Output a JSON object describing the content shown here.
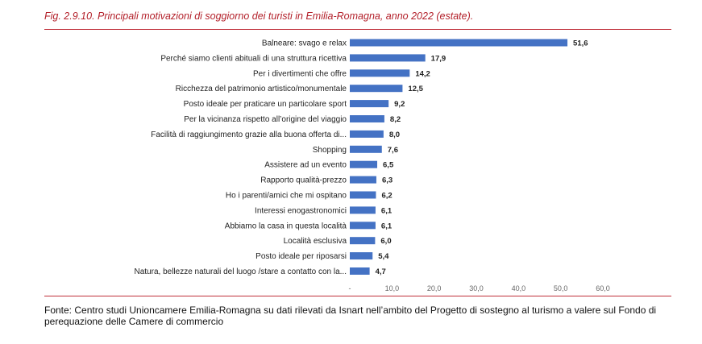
{
  "figure": {
    "title": "Fig. 2.9.10.  Principali motivazioni di soggiorno dei turisti in Emilia-Romagna, anno 2022 (estate).",
    "source": "Fonte: Centro studi Unioncamere Emilia-Romagna su dati rilevati da Isnart nell’ambito del Progetto di sostegno al turismo a valere sul Fondo di perequazione delle Camere di commercio"
  },
  "chart_data": {
    "type": "bar",
    "orientation": "horizontal",
    "categories": [
      "Balneare: svago e relax",
      "Perché siamo clienti abituali di una struttura ricettiva",
      "Per i divertimenti che offre",
      "Ricchezza del patrimonio artistico/monumentale",
      "Posto ideale per praticare un particolare sport",
      "Per la vicinanza rispetto all’origine del viaggio",
      "Facilità di raggiungimento grazie alla buona offerta di...",
      "Shopping",
      "Assistere ad un evento",
      "Rapporto qualità-prezzo",
      "Ho i parenti/amici che mi ospitano",
      "Interessi enogastronomici",
      "Abbiamo la casa in questa località",
      "Località esclusiva",
      "Posto ideale per riposarsi",
      "Natura, bellezze naturali del luogo /stare a contatto con la..."
    ],
    "values": [
      51.6,
      17.9,
      14.2,
      12.5,
      9.2,
      8.2,
      8.0,
      7.6,
      6.5,
      6.3,
      6.2,
      6.1,
      6.1,
      6.0,
      5.4,
      4.7
    ],
    "value_labels": [
      "51,6",
      "17,9",
      "14,2",
      "12,5",
      "9,2",
      "8,2",
      "8,0",
      "7,6",
      "6,5",
      "6,3",
      "6,2",
      "6,1",
      "6,1",
      "6,0",
      "5,4",
      "4,7"
    ],
    "xlim": [
      0,
      60
    ],
    "x_ticks": [
      0,
      10,
      20,
      30,
      40,
      50,
      60
    ],
    "x_tick_labels": [
      "-",
      "10,0",
      "20,0",
      "30,0",
      "40,0",
      "50,0",
      "60,0"
    ],
    "title": "",
    "xlabel": "",
    "ylabel": "",
    "grid": false,
    "legend": "none",
    "bar_color": "#4472c4"
  }
}
